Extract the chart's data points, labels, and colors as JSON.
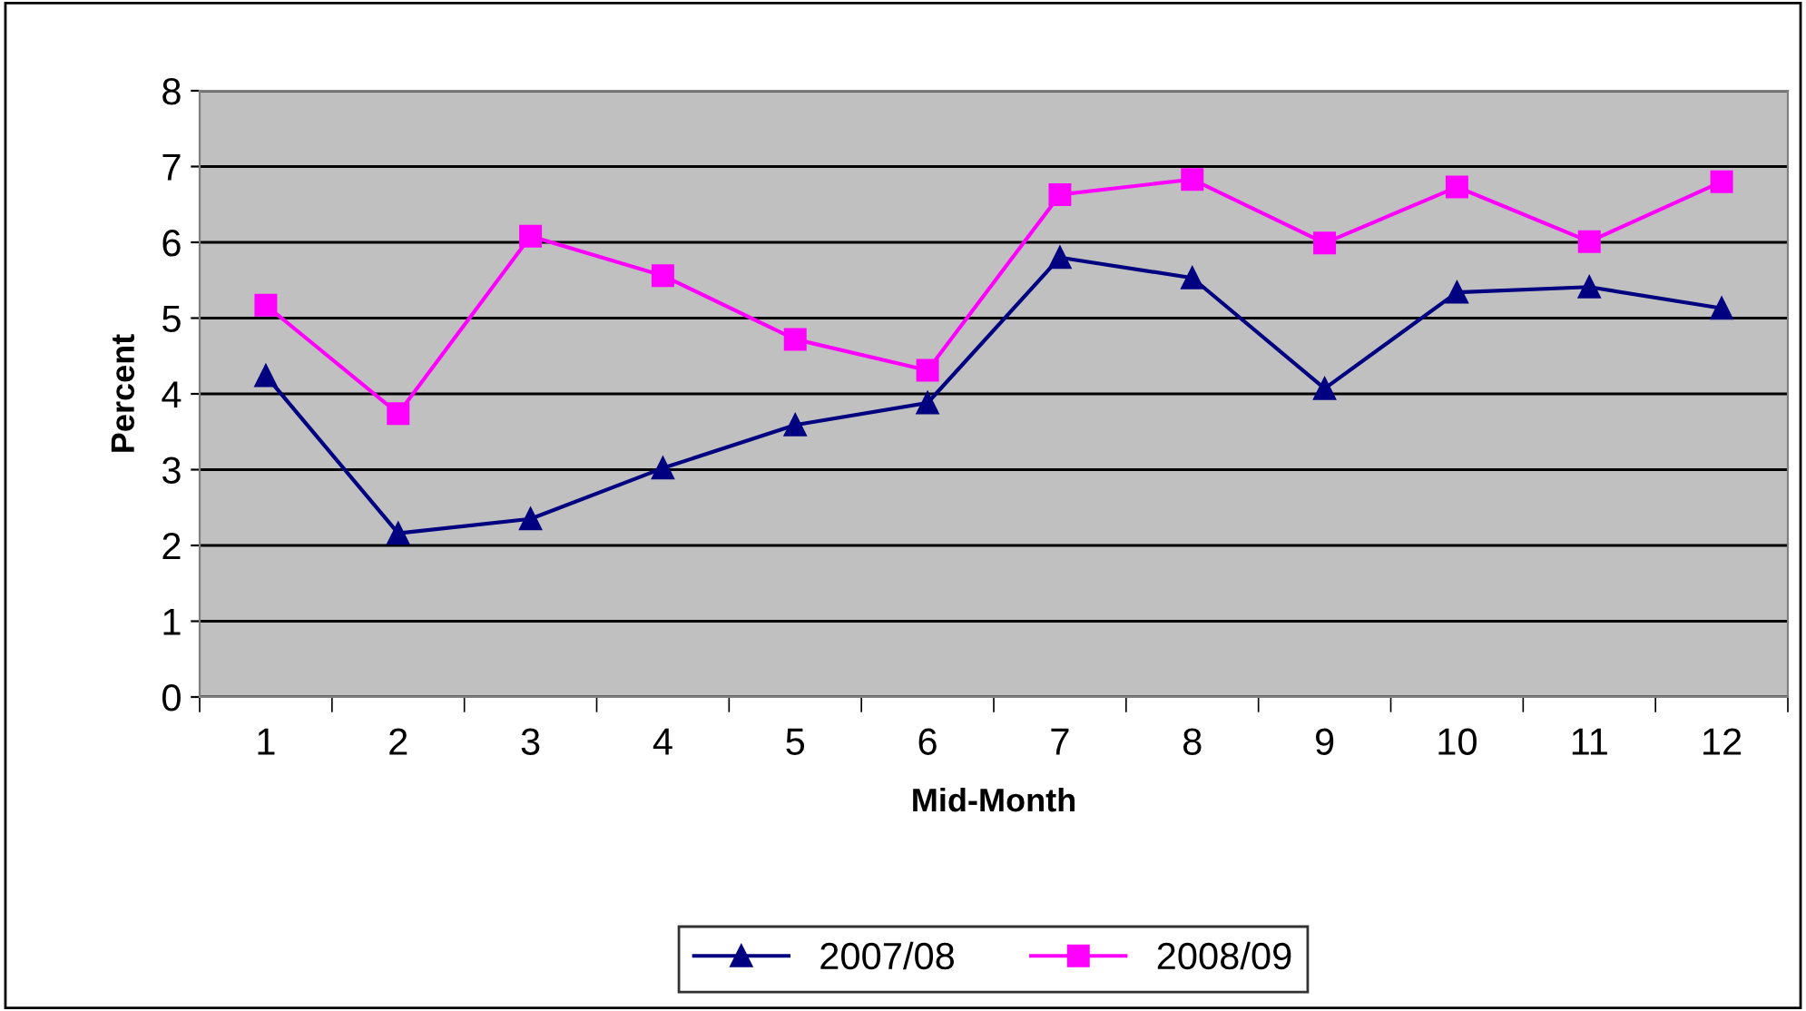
{
  "chart_data": {
    "type": "line",
    "xlabel": "Mid-Month",
    "ylabel": "Percent",
    "categories": [
      "1",
      "2",
      "3",
      "4",
      "5",
      "6",
      "7",
      "8",
      "9",
      "10",
      "11",
      "12"
    ],
    "series": [
      {
        "name": "2007/08",
        "color": "#000080",
        "marker": "triangle",
        "values": [
          4.24,
          2.16,
          2.35,
          3.02,
          3.59,
          3.88,
          5.8,
          5.53,
          4.07,
          5.34,
          5.41,
          5.13
        ]
      },
      {
        "name": "2008/09",
        "color": "#ff00ff",
        "marker": "square",
        "values": [
          5.17,
          3.74,
          6.08,
          5.56,
          4.72,
          4.31,
          6.63,
          6.83,
          5.99,
          6.73,
          6.01,
          6.8
        ]
      }
    ],
    "ylim": [
      0,
      8
    ],
    "yticks": [
      0,
      1,
      2,
      3,
      4,
      5,
      6,
      7,
      8
    ],
    "grid": "y",
    "legend": "bottom"
  }
}
